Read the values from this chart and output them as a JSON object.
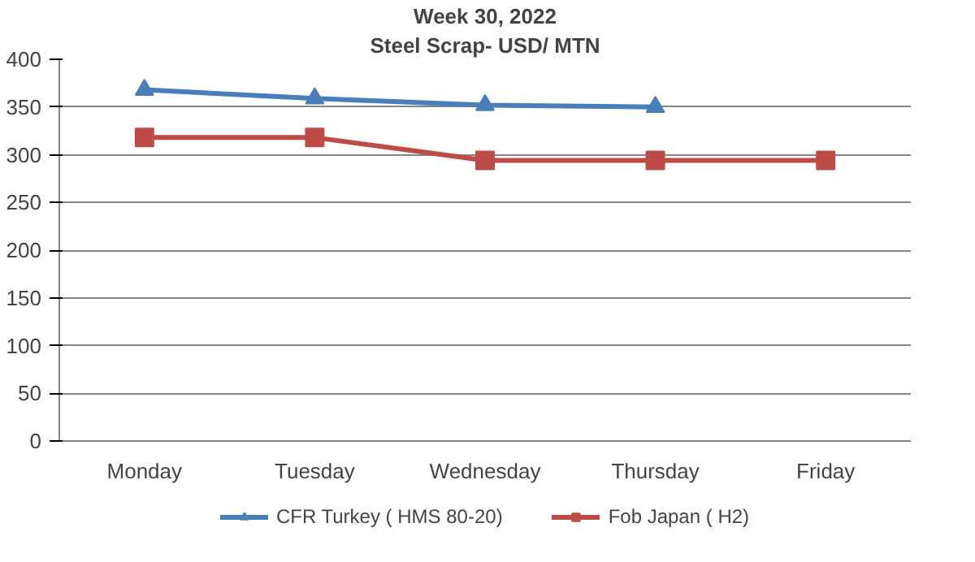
{
  "chart_data": {
    "type": "line",
    "title": "Week 30, 2022",
    "subtitle": "Steel Scrap- USD/ MTN",
    "categories": [
      "Monday",
      "Tuesday",
      "Wednesday",
      "Thursday",
      "Friday"
    ],
    "series": [
      {
        "name": "CFR Turkey ( HMS 80-20)",
        "color": "#4a7ebb",
        "marker": "triangle",
        "values": [
          368,
          359,
          352,
          350,
          null
        ]
      },
      {
        "name": "Fob Japan ( H2)",
        "color": "#be4b48",
        "marker": "square",
        "values": [
          318,
          318,
          294,
          294,
          294
        ]
      }
    ],
    "ylim": [
      0,
      400
    ],
    "yticks": [
      0,
      50,
      100,
      150,
      200,
      250,
      300,
      350,
      400
    ],
    "grid": "y",
    "legend": "bottom"
  }
}
